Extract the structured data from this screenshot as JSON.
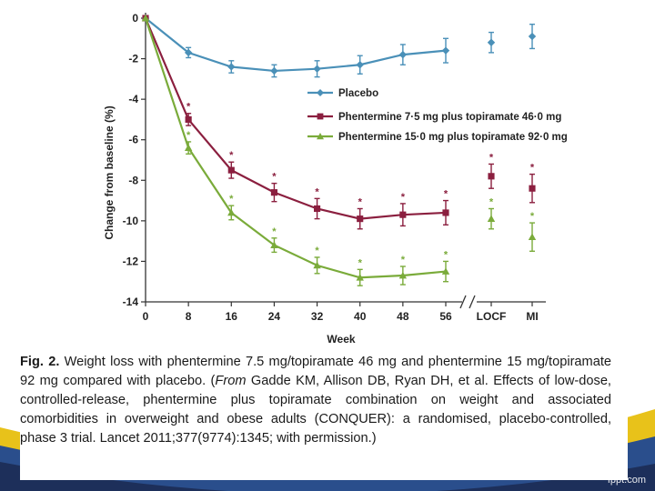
{
  "colors": {
    "placebo": "#4a90b8",
    "low_dose": "#8b1f3f",
    "high_dose": "#7aab3a",
    "axis": "#333333"
  },
  "chart_data": {
    "type": "line",
    "title": "",
    "xlabel": "Week",
    "ylabel": "Change from baseline (%)",
    "ylim": [
      -14,
      0
    ],
    "y_ticks": [
      "0",
      "-2",
      "-4",
      "-6",
      "-8",
      "-10",
      "-12",
      "-14"
    ],
    "x_ticks": [
      "0",
      "8",
      "16",
      "24",
      "32",
      "40",
      "48",
      "56",
      "LOCF",
      "MI"
    ],
    "significance_marker": "*",
    "series": [
      {
        "name": "Placebo",
        "key": "placebo",
        "marker": "diamond",
        "x": [
          0,
          8,
          16,
          24,
          32,
          40,
          48,
          56
        ],
        "values": [
          0,
          -1.7,
          -2.4,
          -2.6,
          -2.5,
          -2.3,
          -1.8,
          -1.6
        ],
        "err": [
          0,
          0.25,
          0.3,
          0.3,
          0.4,
          0.45,
          0.5,
          0.6
        ],
        "endpoints": [
          {
            "label": "LOCF",
            "value": -1.2,
            "err": 0.5
          },
          {
            "label": "MI",
            "value": -0.9,
            "err": 0.6
          }
        ]
      },
      {
        "name": "Phentermine 7·5 mg plus topiramate 46·0 mg",
        "key": "low_dose",
        "marker": "square",
        "x": [
          0,
          8,
          16,
          24,
          32,
          40,
          48,
          56
        ],
        "values": [
          0,
          -5.0,
          -7.5,
          -8.6,
          -9.4,
          -9.9,
          -9.7,
          -9.6
        ],
        "err": [
          0,
          0.3,
          0.4,
          0.45,
          0.5,
          0.5,
          0.55,
          0.6
        ],
        "significant": [
          false,
          true,
          true,
          true,
          true,
          true,
          true,
          true
        ],
        "endpoints": [
          {
            "label": "LOCF",
            "value": -7.8,
            "err": 0.6,
            "significant": true
          },
          {
            "label": "MI",
            "value": -8.4,
            "err": 0.7,
            "significant": true
          }
        ]
      },
      {
        "name": "Phentermine 15·0 mg plus topiramate 92·0 mg",
        "key": "high_dose",
        "marker": "triangle",
        "x": [
          0,
          8,
          16,
          24,
          32,
          40,
          48,
          56
        ],
        "values": [
          0,
          -6.4,
          -9.6,
          -11.2,
          -12.2,
          -12.8,
          -12.7,
          -12.5
        ],
        "err": [
          0,
          0.3,
          0.35,
          0.35,
          0.4,
          0.4,
          0.45,
          0.5
        ],
        "significant": [
          false,
          true,
          true,
          true,
          true,
          true,
          true,
          true
        ],
        "endpoints": [
          {
            "label": "LOCF",
            "value": -9.9,
            "err": 0.5,
            "significant": true
          },
          {
            "label": "MI",
            "value": -10.8,
            "err": 0.7,
            "significant": true
          }
        ]
      }
    ]
  },
  "caption": {
    "fig_label": "Fig. 2.",
    "text_1": " Weight loss with phentermine 7.5 mg/topiramate 46 mg and phentermine 15 mg/topiramate 92 mg compared with placebo. (",
    "from_label": "From",
    "text_2": " Gadde KM, Allison DB, Ryan DH, et al. Effects of low-dose, controlled-release, phentermine plus topiramate combination on weight and associated comorbidities in overweight and obese adults (CONQUER): a randomised, placebo-controlled, phase 3 trial. Lancet 2011;377(9774):1345; with permission.)"
  },
  "footer": {
    "watermark": "fppt.com"
  }
}
